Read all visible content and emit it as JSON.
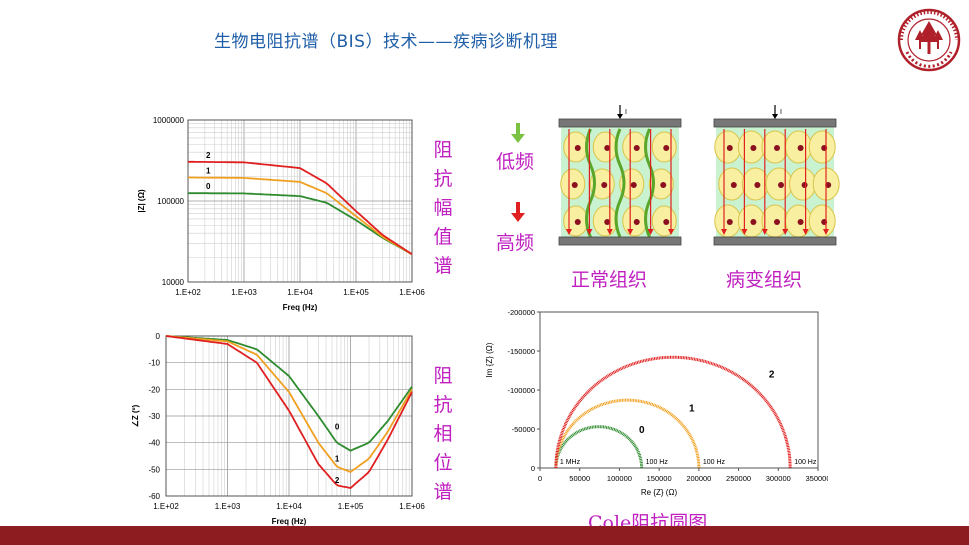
{
  "header": {
    "title": "生物电阻抗谱（BIS）技术——疾病诊断机理"
  },
  "logo": {
    "name": "ecnu-seal"
  },
  "labels": {
    "magnitude_spectrum": [
      "阻",
      "抗",
      "幅",
      "值",
      "谱"
    ],
    "phase_spectrum": [
      "阻",
      "抗",
      "相",
      "位",
      "谱"
    ],
    "low_freq": "低频",
    "high_freq": "高频",
    "normal_tissue": "正常组织",
    "diseased_tissue": "病变组织",
    "cole_plot": "Cole阻抗圆图"
  },
  "colors": {
    "curve0": "#2e8b2e",
    "curve1": "#f0a020",
    "curve2": "#e02020",
    "label": "#c020c0",
    "title": "#1f5ea8",
    "footer": "#8c1c1f"
  },
  "chart_data": [
    {
      "type": "line",
      "xlabel": "Freq (Hz)",
      "ylabel": "|Z| (Ω)",
      "xscale": "log",
      "yscale": "log",
      "xlim": [
        100,
        1000000
      ],
      "ylim": [
        10000,
        1000000
      ],
      "x_ticks": [
        "1.E+02",
        "1.E+03",
        "1.E+04",
        "1.E+05",
        "1.E+06"
      ],
      "y_ticks": [
        "10000",
        "100000",
        "1000000"
      ],
      "series": [
        {
          "name": "0",
          "x": [
            100,
            1000,
            10000,
            30000,
            100000,
            300000,
            1000000
          ],
          "y": [
            125000,
            124000,
            115000,
            95000,
            58000,
            35000,
            22000
          ]
        },
        {
          "name": "1",
          "x": [
            100,
            1000,
            10000,
            30000,
            100000,
            300000,
            1000000
          ],
          "y": [
            195000,
            193000,
            172000,
            125000,
            65000,
            36000,
            22000
          ]
        },
        {
          "name": "2",
          "x": [
            100,
            1000,
            10000,
            30000,
            100000,
            300000,
            1000000
          ],
          "y": [
            305000,
            300000,
            255000,
            165000,
            75000,
            38000,
            22000
          ]
        }
      ]
    },
    {
      "type": "line",
      "xlabel": "Freq (Hz)",
      "ylabel": "∠Z (º)",
      "xscale": "log",
      "xlim": [
        100,
        1000000
      ],
      "ylim": [
        -60,
        0
      ],
      "x_ticks": [
        "1.E+02",
        "1.E+03",
        "1.E+04",
        "1.E+05",
        "1.E+06"
      ],
      "y_ticks": [
        "0",
        "-10",
        "-20",
        "-30",
        "-40",
        "-50",
        "-60"
      ],
      "series": [
        {
          "name": "0",
          "x": [
            100,
            1000,
            3000,
            10000,
            30000,
            60000,
            100000,
            200000,
            400000,
            1000000
          ],
          "y": [
            0,
            -1.5,
            -5,
            -15,
            -30,
            -40,
            -43,
            -40,
            -32,
            -19
          ]
        },
        {
          "name": "1",
          "x": [
            100,
            1000,
            3000,
            10000,
            30000,
            60000,
            100000,
            200000,
            400000,
            1000000
          ],
          "y": [
            0,
            -2,
            -7,
            -21,
            -40,
            -49,
            -51,
            -46,
            -36,
            -20
          ]
        },
        {
          "name": "2",
          "x": [
            100,
            1000,
            3000,
            10000,
            30000,
            60000,
            100000,
            200000,
            400000,
            1000000
          ],
          "y": [
            0,
            -3,
            -10,
            -28,
            -48,
            -56,
            -57,
            -51,
            -39,
            -21
          ]
        }
      ]
    },
    {
      "type": "scatter",
      "title": "Cole",
      "xlabel": "Re {Z} (Ω)",
      "ylabel": "Im {Z} (Ω)",
      "xlim": [
        0,
        350000
      ],
      "ylim": [
        0,
        -200000
      ],
      "x_ticks": [
        "0",
        "50000",
        "100000",
        "150000",
        "200000",
        "250000",
        "300000",
        "350000"
      ],
      "y_ticks": [
        "0",
        "-50000",
        "-100000",
        "-150000",
        "-200000"
      ],
      "series": [
        {
          "name": "0",
          "r0": 128000,
          "rinf": 20000,
          "depth": 53000
        },
        {
          "name": "1",
          "r0": 200000,
          "rinf": 20000,
          "depth": 87000
        },
        {
          "name": "2",
          "r0": 315000,
          "rinf": 20000,
          "depth": 142000
        }
      ],
      "annotations": [
        "1 MHz",
        "100 Hz",
        "100 Hz",
        "100 Hz"
      ]
    }
  ]
}
